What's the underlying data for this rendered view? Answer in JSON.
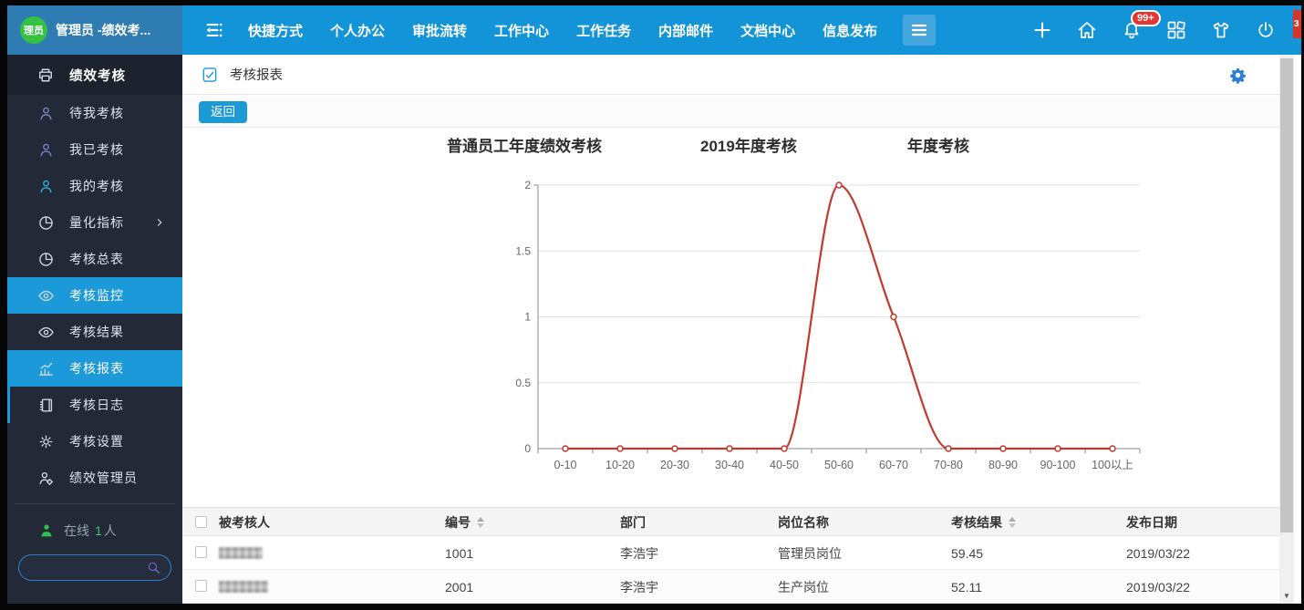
{
  "topbar": {
    "user": {
      "avatar_text": "理员",
      "name": "管理员 -绩效考..."
    },
    "nav_items": [
      "快捷方式",
      "个人办公",
      "审批流转",
      "工作中心",
      "工作任务",
      "内部邮件",
      "文档中心",
      "信息发布"
    ],
    "right_icons": [
      {
        "name": "plus-icon"
      },
      {
        "name": "home-icon"
      },
      {
        "name": "bell-icon",
        "badge": "99+"
      },
      {
        "name": "grid-icon"
      },
      {
        "name": "shirt-icon"
      },
      {
        "name": "power-icon"
      }
    ],
    "edge_badge": "3"
  },
  "sidebar": {
    "items": [
      {
        "label": "绩效考核",
        "icon": "printer-icon",
        "type": "header"
      },
      {
        "label": "待我考核",
        "icon": "user-icon",
        "icon_color": "#7d87c9"
      },
      {
        "label": "我已考核",
        "icon": "user-icon",
        "icon_color": "#7d87c9"
      },
      {
        "label": "我的考核",
        "icon": "user-icon",
        "icon_color": "#2bb7e5"
      },
      {
        "label": "量化指标",
        "icon": "pie-chart-icon",
        "chevron": true
      },
      {
        "label": "考核总表",
        "icon": "pie-chart-icon"
      },
      {
        "label": "考核监控",
        "icon": "eye-icon",
        "active": true
      },
      {
        "label": "考核结果",
        "icon": "eye-icon"
      },
      {
        "label": "考核报表",
        "icon": "bar-chart-icon",
        "active": true
      },
      {
        "label": "考核日志",
        "icon": "notebook-icon",
        "accent": true
      },
      {
        "label": "考核设置",
        "icon": "gear-icon"
      },
      {
        "label": "绩效管理员",
        "icon": "user-gear-icon"
      }
    ],
    "online": {
      "label": "在线",
      "count": "1",
      "unit": "人"
    },
    "search_placeholder": ""
  },
  "breadcrumb": {
    "title": "考核报表"
  },
  "toolbar": {
    "back_label": "返回"
  },
  "chart_data": {
    "type": "line",
    "title_parts": [
      "普通员工年度绩效考核",
      "2019年度考核",
      "年度考核"
    ],
    "categories": [
      "0-10",
      "10-20",
      "20-30",
      "30-40",
      "40-50",
      "50-60",
      "60-70",
      "70-80",
      "80-90",
      "90-100",
      "100以上"
    ],
    "values": [
      0,
      0,
      0,
      0,
      0,
      2,
      1,
      0,
      0,
      0,
      0
    ],
    "ylim": [
      0,
      2
    ],
    "yticks": [
      0,
      0.5,
      1,
      1.5,
      2
    ],
    "ytick_labels": [
      "0",
      "0.5",
      "1",
      "1.5",
      "2"
    ],
    "line_color": "#c0392b",
    "grid_color": "#e2e2e2",
    "axis_color": "#8a8a8a",
    "smooth": true,
    "grid": true,
    "legend": "none",
    "xlabel": "",
    "ylabel": ""
  },
  "table": {
    "headers": [
      {
        "label": "被考核人",
        "sortable": false
      },
      {
        "label": "编号",
        "sortable": true
      },
      {
        "label": "部门",
        "sortable": false
      },
      {
        "label": "岗位名称",
        "sortable": false
      },
      {
        "label": "考核结果",
        "sortable": true
      },
      {
        "label": "发布日期",
        "sortable": false
      }
    ],
    "rows": [
      {
        "name_redacted": true,
        "code": "1001",
        "dept": "李浩宇",
        "post": "管理员岗位",
        "result": "59.45",
        "date": "2019/03/22"
      },
      {
        "name_redacted": true,
        "code": "2001",
        "dept": "李浩宇",
        "post": "生产岗位",
        "result": "52.11",
        "date": "2019/03/22"
      }
    ]
  }
}
